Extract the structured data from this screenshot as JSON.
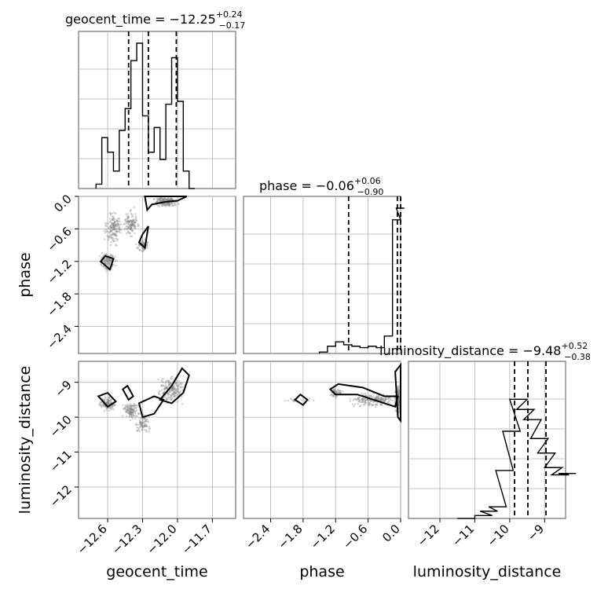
{
  "chart_data": [
    {
      "type": "histogram",
      "panel": "geocent_time",
      "title": {
        "base": "geocent_time = −12.25",
        "sup": "+0.24",
        "sub": "−0.17"
      },
      "xlim": [
        -12.85,
        -11.5
      ],
      "bins": [
        [
          -12.7,
          0.03
        ],
        [
          -12.65,
          0.35
        ],
        [
          -12.6,
          0.25
        ],
        [
          -12.55,
          0.12
        ],
        [
          -12.5,
          0.4
        ],
        [
          -12.45,
          0.55
        ],
        [
          -12.4,
          0.88
        ],
        [
          -12.35,
          1.0
        ],
        [
          -12.3,
          0.5
        ],
        [
          -12.25,
          0.25
        ],
        [
          -12.2,
          0.42
        ],
        [
          -12.15,
          0.2
        ],
        [
          -12.1,
          0.58
        ],
        [
          -12.05,
          0.9
        ],
        [
          -12.0,
          0.6
        ],
        [
          -11.95,
          0.12
        ],
        [
          -11.9,
          0.0
        ]
      ],
      "quantiles": [
        -12.42,
        -12.25,
        -12.01
      ]
    },
    {
      "type": "scatter",
      "panel": "geocent_time vs phase",
      "xlim": [
        -12.85,
        -11.5
      ],
      "ylim": [
        -2.9,
        0.0
      ],
      "yticks": [
        0.0,
        -0.6,
        -1.2,
        -1.8,
        -2.4
      ],
      "ylabel": "phase"
    },
    {
      "type": "histogram",
      "panel": "phase",
      "title": {
        "base": "phase = −0.06",
        "sup": "+0.06",
        "sub": "−0.90"
      },
      "xlim": [
        -2.9,
        0.0
      ],
      "bins": [
        [
          -1.5,
          0.01
        ],
        [
          -1.35,
          0.05
        ],
        [
          -1.2,
          0.08
        ],
        [
          -1.05,
          0.06
        ],
        [
          -0.9,
          0.05
        ],
        [
          -0.75,
          0.04
        ],
        [
          -0.6,
          0.05
        ],
        [
          -0.45,
          0.04
        ],
        [
          -0.3,
          0.12
        ],
        [
          -0.15,
          0.92
        ],
        [
          -0.08,
          1.0
        ]
      ],
      "quantiles": [
        -0.96,
        -0.06,
        0.0
      ]
    },
    {
      "type": "scatter",
      "panel": "geocent_time vs luminosity_distance",
      "xlim": [
        -12.85,
        -11.5
      ],
      "ylim": [
        -12.9,
        -8.4
      ],
      "xticks": [
        -12.6,
        -12.3,
        -12.0,
        -11.7
      ],
      "yticks": [
        -9,
        -10,
        -11,
        -12
      ],
      "xlabel": "geocent_time",
      "ylabel": "luminosity_distance"
    },
    {
      "type": "scatter",
      "panel": "phase vs luminosity_distance",
      "xlim": [
        -2.9,
        0.0
      ],
      "ylim": [
        -12.9,
        -8.4
      ],
      "xticks": [
        -2.4,
        -1.8,
        -1.2,
        -0.6,
        0.0
      ],
      "xlabel": "phase"
    },
    {
      "type": "histogram",
      "panel": "luminosity_distance",
      "title": {
        "base": "luminosity_distance = −9.48",
        "sup": "+0.52",
        "sub": "−0.38"
      },
      "xlim": [
        -12.9,
        -8.4
      ],
      "xticks": [
        -12,
        -11,
        -10,
        -9
      ],
      "xlabel": "luminosity_distance",
      "bins": [
        [
          -11.5,
          0.0
        ],
        [
          -11.0,
          0.02
        ],
        [
          -10.85,
          0.05
        ],
        [
          -10.6,
          0.08
        ],
        [
          -10.4,
          0.33
        ],
        [
          -10.2,
          0.6
        ],
        [
          -10.0,
          0.82
        ],
        [
          -9.8,
          0.75
        ],
        [
          -9.6,
          0.68
        ],
        [
          -9.4,
          0.55
        ],
        [
          -9.2,
          0.45
        ],
        [
          -9.0,
          0.35
        ],
        [
          -8.8,
          0.3
        ],
        [
          -8.6,
          0.31
        ]
      ],
      "quantiles": [
        -9.86,
        -9.48,
        -8.96
      ]
    }
  ]
}
